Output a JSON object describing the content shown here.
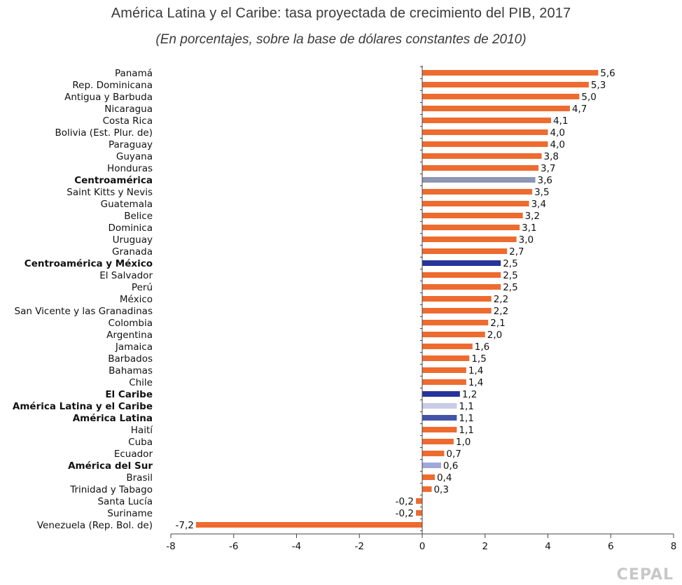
{
  "chart_data": {
    "type": "bar",
    "orientation": "horizontal",
    "title": "América Latina y el Caribe: tasa proyectada de crecimiento del PIB, 2017",
    "subtitle": "(En porcentajes, sobre  la base de dólares  constantes de 2010)",
    "xlim": [
      -8,
      8
    ],
    "xticks": [
      -8,
      -6,
      -4,
      -2,
      0,
      2,
      4,
      6,
      8
    ],
    "categories": [
      "Panamá",
      "Rep. Dominicana",
      "Antigua y Barbuda",
      "Nicaragua",
      "Costa Rica",
      "Bolivia (Est. Plur. de)",
      "Paraguay",
      "Guyana",
      "Honduras",
      "Centroamérica",
      "Saint Kitts y Nevis",
      "Guatemala",
      "Belice",
      "Dominica",
      "Uruguay",
      "Granada",
      "Centroamérica y México",
      "El Salvador",
      "Perú",
      "México",
      "San Vicente y las Granadinas",
      "Colombia",
      "Argentina",
      "Jamaica",
      "Barbados",
      "Bahamas",
      "Chile",
      "El Caribe",
      "América Latina y el Caribe",
      "América Latina",
      "Haití",
      "Cuba",
      "Ecuador",
      "América del Sur",
      "Brasil",
      "Trinidad y Tabago",
      "Santa Lucía",
      "Suriname",
      "Venezuela (Rep. Bol. de)"
    ],
    "values": [
      5.6,
      5.3,
      5.0,
      4.7,
      4.1,
      4.0,
      4.0,
      3.8,
      3.7,
      3.6,
      3.5,
      3.4,
      3.2,
      3.1,
      3.0,
      2.7,
      2.5,
      2.5,
      2.5,
      2.2,
      2.2,
      2.1,
      2.0,
      1.6,
      1.5,
      1.4,
      1.4,
      1.2,
      1.1,
      1.1,
      1.1,
      1.0,
      0.7,
      0.6,
      0.4,
      0.3,
      -0.2,
      -0.2,
      -7.2
    ],
    "value_labels": [
      "5,6",
      "5,3",
      "5,0",
      "4,7",
      "4,1",
      "4,0",
      "4,0",
      "3,8",
      "3,7",
      "3,6",
      "3,5",
      "3,4",
      "3,2",
      "3,1",
      "3,0",
      "2,7",
      "2,5",
      "2,5",
      "2,5",
      "2,2",
      "2,2",
      "2,1",
      "2,0",
      "1,6",
      "1,5",
      "1,4",
      "1,4",
      "1,2",
      "1,1",
      "1,1",
      "1,1",
      "1,0",
      "0,7",
      "0,6",
      "0,4",
      "0,3",
      "-0,2",
      "-0,2",
      "-7,2"
    ],
    "aggregate": [
      false,
      false,
      false,
      false,
      false,
      false,
      false,
      false,
      false,
      true,
      false,
      false,
      false,
      false,
      false,
      false,
      true,
      false,
      false,
      false,
      false,
      false,
      false,
      false,
      false,
      false,
      false,
      true,
      true,
      true,
      false,
      false,
      false,
      true,
      false,
      false,
      false,
      false,
      false
    ],
    "bar_colors": {
      "default": "#ee6b2f",
      "Centroamérica": "#8e96b4",
      "Centroamérica y México": "#26349a",
      "El Caribe": "#26349a",
      "América Latina y el Caribe": "#c8cce8",
      "América Latina": "#4254a8",
      "América del Sur": "#a0a8d8"
    }
  },
  "source": "CEPAL"
}
